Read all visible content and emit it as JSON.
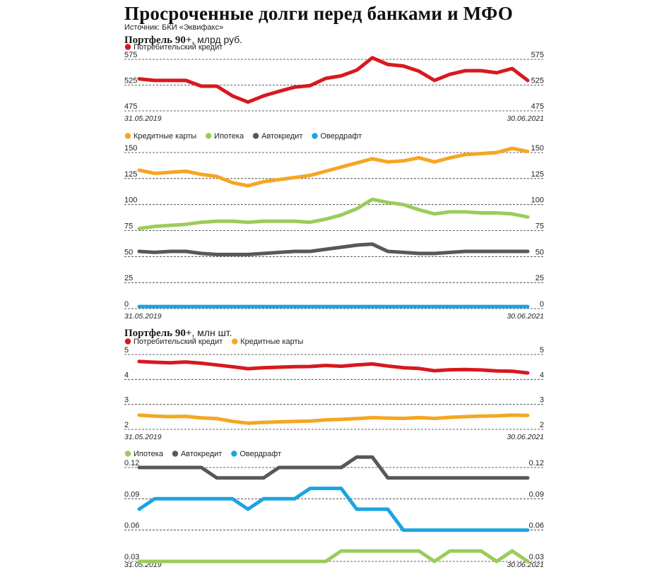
{
  "header": {
    "title": "Просроченные долги перед банками и МФО",
    "source": "Источник: БКИ «Эквифакс»"
  },
  "sections": {
    "s1": {
      "bold": "Портфель 90+",
      "rest": ", млрд руб."
    },
    "s2": {
      "bold": "Портфель 90+",
      "rest": ", млн шт."
    }
  },
  "colors": {
    "consumer": "#d7191f",
    "cards": "#f5a623",
    "mortgage": "#9bcc5a",
    "auto": "#58585a",
    "overdraft": "#1ba4e1",
    "grid": "#333333"
  },
  "chart_data": [
    {
      "type": "line",
      "id": "c1",
      "date_start": "31.05.2019",
      "date_end": "30.06.2021",
      "yticks": [
        475,
        525,
        575
      ],
      "ylim": [
        475,
        575
      ],
      "series": [
        {
          "name": "Потребительский кредит",
          "color_key": "consumer",
          "values": [
            537,
            534,
            534,
            534,
            523,
            523,
            504,
            492,
            504,
            513,
            521,
            524,
            538,
            543,
            554,
            578,
            565,
            562,
            552,
            534,
            546,
            553,
            553,
            549,
            557,
            534
          ]
        }
      ]
    },
    {
      "type": "line",
      "id": "c2",
      "date_start": "31.05.2019",
      "date_end": "30.06.2021",
      "yticks": [
        0,
        25,
        50,
        75,
        100,
        125,
        150
      ],
      "ylim": [
        0,
        150
      ],
      "series": [
        {
          "name": "Кредитные карты",
          "color_key": "cards",
          "values": [
            133,
            130,
            131,
            132,
            129,
            127,
            121,
            118,
            122,
            124,
            126,
            128,
            132,
            136,
            140,
            144,
            141,
            142,
            145,
            141,
            145,
            148,
            149,
            150,
            154,
            151
          ]
        },
        {
          "name": "Ипотека",
          "color_key": "mortgage",
          "values": [
            77,
            79,
            80,
            81,
            83,
            84,
            84,
            83,
            84,
            84,
            84,
            83,
            86,
            90,
            96,
            105,
            102,
            100,
            95,
            91,
            93,
            93,
            92,
            92,
            91,
            88
          ]
        },
        {
          "name": "Автокредит",
          "color_key": "auto",
          "values": [
            55,
            54,
            55,
            55,
            53,
            52,
            52,
            52,
            53,
            54,
            55,
            55,
            57,
            59,
            61,
            62,
            55,
            54,
            53,
            53,
            54,
            55,
            55,
            55,
            55,
            55
          ]
        },
        {
          "name": "Овердрафт",
          "color_key": "overdraft",
          "values": [
            2,
            2,
            2,
            2,
            2,
            2,
            2,
            2,
            2,
            2,
            2,
            2,
            2,
            2,
            2,
            2,
            2,
            2,
            2,
            2,
            2,
            2,
            2,
            2,
            2,
            2
          ]
        }
      ]
    },
    {
      "type": "line",
      "id": "c3",
      "date_start": "31.05.2019",
      "date_end": "30.06.2021",
      "yticks": [
        2,
        3,
        4,
        5
      ],
      "ylim": [
        2,
        5
      ],
      "series": [
        {
          "name": "Потребительский кредит",
          "color_key": "consumer",
          "values": [
            4.72,
            4.69,
            4.67,
            4.7,
            4.65,
            4.58,
            4.51,
            4.43,
            4.47,
            4.49,
            4.51,
            4.52,
            4.56,
            4.53,
            4.58,
            4.62,
            4.54,
            4.47,
            4.44,
            4.35,
            4.39,
            4.4,
            4.38,
            4.34,
            4.33,
            4.26
          ]
        },
        {
          "name": "Кредитные карты",
          "color_key": "cards",
          "values": [
            2.57,
            2.53,
            2.51,
            2.52,
            2.46,
            2.43,
            2.32,
            2.25,
            2.28,
            2.3,
            2.32,
            2.33,
            2.38,
            2.4,
            2.43,
            2.47,
            2.45,
            2.44,
            2.47,
            2.44,
            2.48,
            2.51,
            2.53,
            2.54,
            2.57,
            2.56
          ]
        }
      ]
    },
    {
      "type": "line",
      "id": "c4",
      "date_start": "31.05.2019",
      "date_end": "30.06.2021",
      "yticks": [
        0.03,
        0.06,
        0.09,
        0.12
      ],
      "ylim": [
        0.03,
        0.12
      ],
      "series": [
        {
          "name": "Ипотека",
          "color_key": "mortgage",
          "values": [
            0.03,
            0.03,
            0.03,
            0.03,
            0.03,
            0.03,
            0.03,
            0.03,
            0.03,
            0.03,
            0.03,
            0.03,
            0.03,
            0.04,
            0.04,
            0.04,
            0.04,
            0.04,
            0.04,
            0.03,
            0.04,
            0.04,
            0.04,
            0.03,
            0.04,
            0.03
          ]
        },
        {
          "name": "Автокредит",
          "color_key": "auto",
          "values": [
            0.12,
            0.12,
            0.12,
            0.12,
            0.12,
            0.11,
            0.11,
            0.11,
            0.11,
            0.12,
            0.12,
            0.12,
            0.12,
            0.12,
            0.13,
            0.13,
            0.11,
            0.11,
            0.11,
            0.11,
            0.11,
            0.11,
            0.11,
            0.11,
            0.11,
            0.11
          ]
        },
        {
          "name": "Овердрафт",
          "color_key": "overdraft",
          "values": [
            0.08,
            0.09,
            0.09,
            0.09,
            0.09,
            0.09,
            0.09,
            0.08,
            0.09,
            0.09,
            0.09,
            0.1,
            0.1,
            0.1,
            0.08,
            0.08,
            0.08,
            0.06,
            0.06,
            0.06,
            0.06,
            0.06,
            0.06,
            0.06,
            0.06,
            0.06
          ]
        }
      ]
    }
  ]
}
